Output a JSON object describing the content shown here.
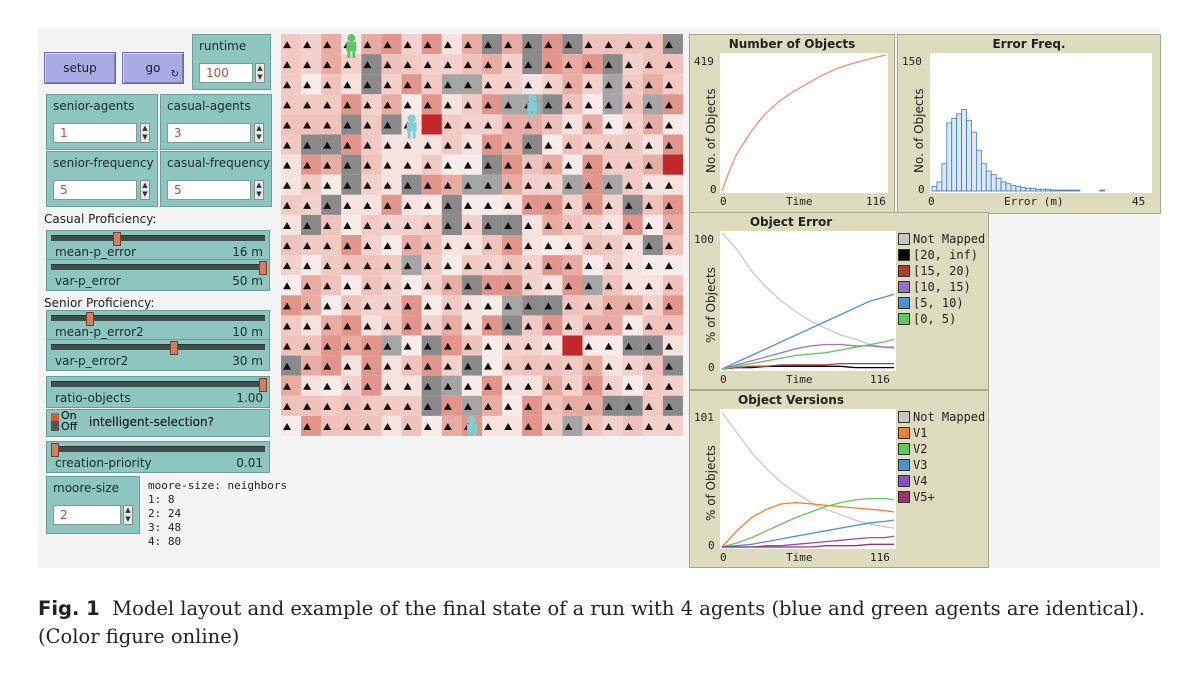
{
  "buttons": {
    "setup": "setup",
    "go": "go",
    "go_icon": "↻"
  },
  "runtime": {
    "label": "runtime",
    "value": "100"
  },
  "inputs": [
    {
      "name": "senior-agents",
      "label": "senior-agents",
      "value": "1"
    },
    {
      "name": "casual-agents",
      "label": "casual-agents",
      "value": "3"
    },
    {
      "name": "senior-frequency",
      "label": "senior-frequency",
      "value": "5"
    },
    {
      "name": "casual-frequency",
      "label": "casual-frequency",
      "value": "5"
    }
  ],
  "sections": {
    "casual": "Casual Proficiency:",
    "senior": "Senior Proficiency:"
  },
  "sliders": {
    "mean_p_error": {
      "label": "mean-p_error",
      "value": "16 m",
      "fraction": 0.3
    },
    "var_p_error": {
      "label": "var-p_error",
      "value": "50 m",
      "fraction": 1.0
    },
    "mean_p_error2": {
      "label": "mean-p_error2",
      "value": "10 m",
      "fraction": 0.17
    },
    "var_p_error2": {
      "label": "var-p_error2",
      "value": "30 m",
      "fraction": 0.57
    },
    "ratio_objects": {
      "label": "ratio-objects",
      "value": "1.00",
      "fraction": 1.0
    },
    "creation_priority": {
      "label": "creation-priority",
      "value": "0.01",
      "fraction": 0.0
    }
  },
  "switch": {
    "on": "On",
    "off": "Off",
    "label": "intelligent-selection?"
  },
  "moore": {
    "label": "moore-size",
    "value": "2",
    "note_title": "moore-size: neighbors",
    "note_lines": [
      "1: 8",
      "2: 24",
      "3: 48",
      "4: 80"
    ]
  },
  "plots": {
    "objects": {
      "title": "Number of Objects",
      "ylabel": "No. of Objects",
      "xlabel": "Time",
      "ymax": "419",
      "ymin": "0",
      "xmin": "0",
      "xmax": "116"
    },
    "errfreq": {
      "title": "Error Freq.",
      "ylabel": "No. of Objects",
      "xlabel": "Error (m)",
      "ymax": "150",
      "ymin": "0",
      "xmin": "0",
      "xmax": "45"
    },
    "objerr": {
      "title": "Object Error",
      "ylabel": "% of Objects",
      "xlabel": "Time",
      "ymax": "100",
      "ymin": "0",
      "xmin": "0",
      "xmax": "116",
      "legend": [
        "Not Mapped",
        "[20, inf)",
        "[15, 20)",
        "[10, 15)",
        "[5, 10)",
        "[0, 5)"
      ],
      "colors": [
        "#c8c8c8",
        "#000000",
        "#b03a2e",
        "#9b6fc4",
        "#4a8fd0",
        "#5cc85c"
      ]
    },
    "objver": {
      "title": "Object Versions",
      "ylabel": "% of Objects",
      "xlabel": "Time",
      "ymax": "101",
      "ymin": "0",
      "xmin": "0",
      "xmax": "116",
      "legend": [
        "Not Mapped",
        "V1",
        "V2",
        "V3",
        "V4",
        "V5+"
      ],
      "colors": [
        "#c8c8c8",
        "#f08030",
        "#5cc85c",
        "#4a8fd0",
        "#8a4fc4",
        "#a0306e"
      ]
    }
  },
  "chart_data": [
    {
      "type": "line",
      "title": "Number of Objects",
      "xlabel": "Time",
      "ylabel": "No. of Objects",
      "xlim": [
        0,
        116
      ],
      "ylim": [
        0,
        419
      ],
      "series": [
        {
          "x": [
            0,
            5,
            10,
            20,
            30,
            40,
            50,
            60,
            70,
            80,
            90,
            100,
            110,
            116
          ],
          "values": [
            0,
            60,
            110,
            180,
            235,
            275,
            305,
            330,
            355,
            375,
            390,
            402,
            413,
            419
          ]
        }
      ]
    },
    {
      "type": "bar",
      "title": "Error Freq.",
      "xlabel": "Error (m)",
      "ylabel": "No. of Objects",
      "xlim": [
        0,
        45
      ],
      "ylim": [
        0,
        150
      ],
      "categories": [
        "0",
        "1",
        "2",
        "3",
        "4",
        "5",
        "6",
        "7",
        "8",
        "9",
        "10",
        "11",
        "12",
        "13",
        "14",
        "15",
        "16",
        "17",
        "18",
        "19",
        "20",
        "21",
        "22",
        "23",
        "24",
        "25",
        "26",
        "27",
        "28",
        "29",
        "30",
        "31",
        "32",
        "33",
        "34",
        "35"
      ],
      "values": [
        5,
        10,
        30,
        75,
        80,
        85,
        90,
        78,
        65,
        45,
        30,
        22,
        18,
        14,
        10,
        8,
        6,
        5,
        4,
        3,
        3,
        2,
        2,
        2,
        1,
        1,
        1,
        1,
        1,
        1,
        0,
        0,
        0,
        0,
        1,
        0
      ]
    },
    {
      "type": "line",
      "title": "Object Error",
      "xlabel": "Time",
      "ylabel": "% of Objects",
      "xlim": [
        0,
        116
      ],
      "ylim": [
        0,
        100
      ],
      "x": [
        0,
        10,
        20,
        30,
        40,
        50,
        60,
        70,
        80,
        90,
        100,
        110,
        116
      ],
      "series": [
        {
          "name": "Not Mapped",
          "values": [
            100,
            88,
            72,
            60,
            50,
            42,
            35,
            30,
            25,
            22,
            18,
            16,
            15
          ]
        },
        {
          "name": "[20, inf)",
          "values": [
            0,
            1,
            1,
            2,
            2,
            2,
            2,
            2,
            2,
            1,
            1,
            1,
            1
          ]
        },
        {
          "name": "[15, 20)",
          "values": [
            0,
            1,
            2,
            2,
            3,
            3,
            3,
            3,
            4,
            4,
            4,
            4,
            4
          ]
        },
        {
          "name": "[10, 15)",
          "values": [
            0,
            3,
            6,
            9,
            12,
            15,
            17,
            18,
            18,
            17,
            17,
            16,
            16
          ]
        },
        {
          "name": "[5, 10)",
          "values": [
            0,
            5,
            10,
            15,
            20,
            25,
            30,
            35,
            40,
            45,
            50,
            53,
            55
          ]
        },
        {
          "name": "[0, 5)",
          "values": [
            0,
            2,
            4,
            6,
            8,
            10,
            11,
            12,
            14,
            16,
            18,
            20,
            22
          ]
        }
      ]
    },
    {
      "type": "line",
      "title": "Object Versions",
      "xlabel": "Time",
      "ylabel": "% of Objects",
      "xlim": [
        0,
        116
      ],
      "ylim": [
        0,
        101
      ],
      "x": [
        0,
        10,
        20,
        30,
        40,
        50,
        60,
        70,
        80,
        90,
        100,
        110,
        116
      ],
      "series": [
        {
          "name": "Not Mapped",
          "values": [
            100,
            85,
            70,
            58,
            48,
            40,
            33,
            28,
            24,
            20,
            17,
            15,
            14
          ]
        },
        {
          "name": "V1",
          "values": [
            0,
            12,
            22,
            28,
            32,
            33,
            32,
            31,
            30,
            29,
            28,
            27,
            26
          ]
        },
        {
          "name": "V2",
          "values": [
            0,
            3,
            7,
            12,
            17,
            22,
            26,
            30,
            33,
            35,
            36,
            36,
            35
          ]
        },
        {
          "name": "V3",
          "values": [
            0,
            1,
            2,
            4,
            6,
            8,
            10,
            12,
            14,
            16,
            18,
            19,
            20
          ]
        },
        {
          "name": "V4",
          "values": [
            0,
            0,
            0,
            1,
            1,
            2,
            3,
            4,
            5,
            6,
            7,
            7,
            8
          ]
        },
        {
          "name": "V5+",
          "values": [
            0,
            0,
            0,
            0,
            0,
            0,
            0,
            1,
            1,
            1,
            2,
            2,
            2
          ]
        }
      ]
    }
  ],
  "colors": {
    "cell_base": "#f2d4d0",
    "cell_dark": "#8a8a8a",
    "cell_red": "#c0282a",
    "agent_blue": "#7ecfd4",
    "agent_green": "#5ec46a"
  },
  "caption": {
    "label": "Fig. 1",
    "text": "Model layout and example of the final state of a run with 4 agents (blue and green agents are identical). (Color figure online)"
  }
}
